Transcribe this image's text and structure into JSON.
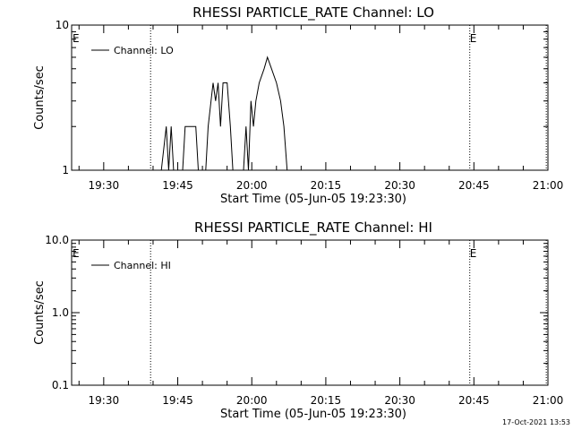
{
  "footer": {
    "timestamp": "17-Oct-2021 13:53"
  },
  "chart_data": [
    {
      "type": "line",
      "title": "RHESSI PARTICLE_RATE Channel: LO",
      "xlabel": "Start Time (05-Jun-05 19:23:30)",
      "ylabel": "Counts/sec",
      "yscale": "log",
      "xlim": [
        "19:23:30",
        "21:00:00"
      ],
      "ylim": [
        1,
        10
      ],
      "x_ticks": [
        "19:30",
        "19:45",
        "20:00",
        "20:15",
        "20:30",
        "20:45",
        "21:00"
      ],
      "y_ticks": [
        "1",
        "10"
      ],
      "legend": {
        "entries": [
          "Channel: LO"
        ],
        "position": "top-left"
      },
      "event_markers": [
        {
          "time": "19:39:30",
          "label": ""
        },
        {
          "time": "20:44:10",
          "label": "E"
        },
        {
          "time": "20:59:40",
          "label": ""
        }
      ],
      "corner_labels": [
        "E"
      ],
      "series": [
        {
          "name": "Channel: LO",
          "color": "#000000",
          "points": [
            [
              "19:41:40",
              1
            ],
            [
              "19:42:40",
              2
            ],
            [
              "19:43:10",
              1
            ],
            [
              "19:43:40",
              2
            ],
            [
              "19:44:10",
              1
            ],
            [
              "19:46:00",
              1
            ],
            [
              "19:46:30",
              2
            ],
            [
              "19:48:40",
              2
            ],
            [
              "19:49:10",
              1
            ],
            [
              "19:50:40",
              1
            ],
            [
              "19:51:10",
              2
            ],
            [
              "19:52:10",
              4
            ],
            [
              "19:52:40",
              3
            ],
            [
              "19:53:10",
              4
            ],
            [
              "19:53:40",
              2
            ],
            [
              "19:54:10",
              4
            ],
            [
              "19:55:00",
              4
            ],
            [
              "19:55:40",
              2
            ],
            [
              "19:56:10",
              1
            ],
            [
              "19:58:20",
              1
            ],
            [
              "19:58:50",
              2
            ],
            [
              "19:59:20",
              1
            ],
            [
              "19:59:50",
              3
            ],
            [
              "20:00:20",
              2
            ],
            [
              "20:00:50",
              3
            ],
            [
              "20:01:30",
              4
            ],
            [
              "20:02:30",
              5
            ],
            [
              "20:03:10",
              6
            ],
            [
              "20:04:00",
              5
            ],
            [
              "20:05:00",
              4
            ],
            [
              "20:05:50",
              3
            ],
            [
              "20:06:30",
              2
            ],
            [
              "20:07:10",
              1
            ]
          ]
        }
      ]
    },
    {
      "type": "line",
      "title": "RHESSI PARTICLE_RATE Channel: HI",
      "xlabel": "Start Time (05-Jun-05 19:23:30)",
      "ylabel": "Counts/sec",
      "yscale": "log",
      "xlim": [
        "19:23:30",
        "21:00:00"
      ],
      "ylim": [
        0.1,
        10
      ],
      "x_ticks": [
        "19:30",
        "19:45",
        "20:00",
        "20:15",
        "20:30",
        "20:45",
        "21:00"
      ],
      "y_ticks": [
        "0.1",
        "1.0",
        "10.0"
      ],
      "legend": {
        "entries": [
          "Channel: HI"
        ],
        "position": "top-left"
      },
      "event_markers": [
        {
          "time": "19:39:30",
          "label": ""
        },
        {
          "time": "20:44:10",
          "label": "E"
        },
        {
          "time": "20:59:40",
          "label": ""
        }
      ],
      "corner_labels": [
        "E"
      ],
      "series": [
        {
          "name": "Channel: HI",
          "color": "#000000",
          "points": []
        }
      ]
    }
  ]
}
